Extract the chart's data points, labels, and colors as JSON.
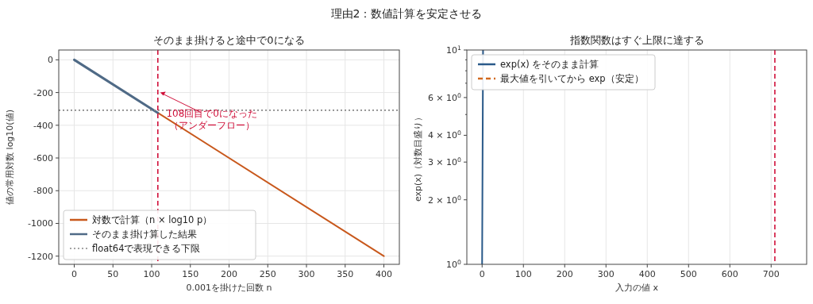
{
  "chart_data": [
    {
      "type": "line",
      "title": "そのまま掛けると途中で0になる",
      "xlabel": "0.001を掛けた回数 n",
      "ylabel": "値の常用対数 log10(値)",
      "annotations": [
        "理由2：数値計算を安定させる",
        {
          "text": "108回目で0になった（アンダーフロー）",
          "x": 110,
          "y": -200
        }
      ],
      "series": [
        {
          "name": "対数で計算（n × log10 p）",
          "color": "#c8581c",
          "x": [
            108,
            400
          ],
          "values": [
            -324,
            -1200
          ],
          "line_style": "solid"
        },
        {
          "name": "そのまま掛け算した結果",
          "color": "#4f6a86",
          "x": [
            0,
            108
          ],
          "values": [
            0,
            -324
          ],
          "line_style": "solid"
        }
      ],
      "ref_lines": [
        {
          "axis": "y",
          "value": -308,
          "label": "float64で表現できる下限",
          "color": "#888888",
          "line_style": "dotted"
        },
        {
          "axis": "x",
          "value": 108,
          "color": "#d0103a",
          "line_style": "dashed"
        }
      ],
      "xlim": [
        -20,
        420
      ],
      "xticks": [
        0,
        50,
        100,
        150,
        200,
        250,
        300,
        350,
        400
      ],
      "ylim": [
        -1250,
        60
      ],
      "yticks": [
        -1200,
        -1000,
        -800,
        -600,
        -400,
        -200,
        0
      ],
      "grid": true,
      "legend": "bottom left"
    },
    {
      "type": "line",
      "title": "指数関数はすぐ上限に達する",
      "xlabel": "入力の値 x",
      "ylabel": "exp(x)（対数目盛り）",
      "series": [
        {
          "name": "exp(x) をそのまま計算",
          "color": "#2a5a8a",
          "x": [
            0,
            1,
            2.303
          ],
          "values": [
            1,
            2.718,
            10
          ],
          "line_style": "solid"
        },
        {
          "name": "最大値を引いてから exp（安定）",
          "color": "#d2691e",
          "line_style": "dashed"
        }
      ],
      "ref_lines": [
        {
          "axis": "x",
          "value": 709,
          "color": "#d0103a",
          "line_style": "dashed"
        }
      ],
      "xlim": [
        -37,
        786
      ],
      "xticks": [
        0,
        100,
        200,
        300,
        400,
        500,
        600,
        700
      ],
      "ylim": [
        1,
        10
      ],
      "yticks": [
        {
          "value": 1,
          "label": "10$^{0}$"
        },
        {
          "value": 2,
          "label": "2 × 10$^{0}$"
        },
        {
          "value": 3,
          "label": "3 × 10$^{0}$"
        },
        {
          "value": 4,
          "label": "4 × 10$^{0}$"
        },
        {
          "value": 5,
          "label": null
        },
        {
          "value": 6,
          "label": "6 × 10$^{0}$"
        },
        {
          "value": 7,
          "label": null
        },
        {
          "value": 8,
          "label": null
        },
        {
          "value": 9,
          "label": null
        },
        {
          "value": 10,
          "label": "10$^{1}$"
        }
      ],
      "log": true,
      "grid": "x",
      "legend": "top left"
    }
  ]
}
